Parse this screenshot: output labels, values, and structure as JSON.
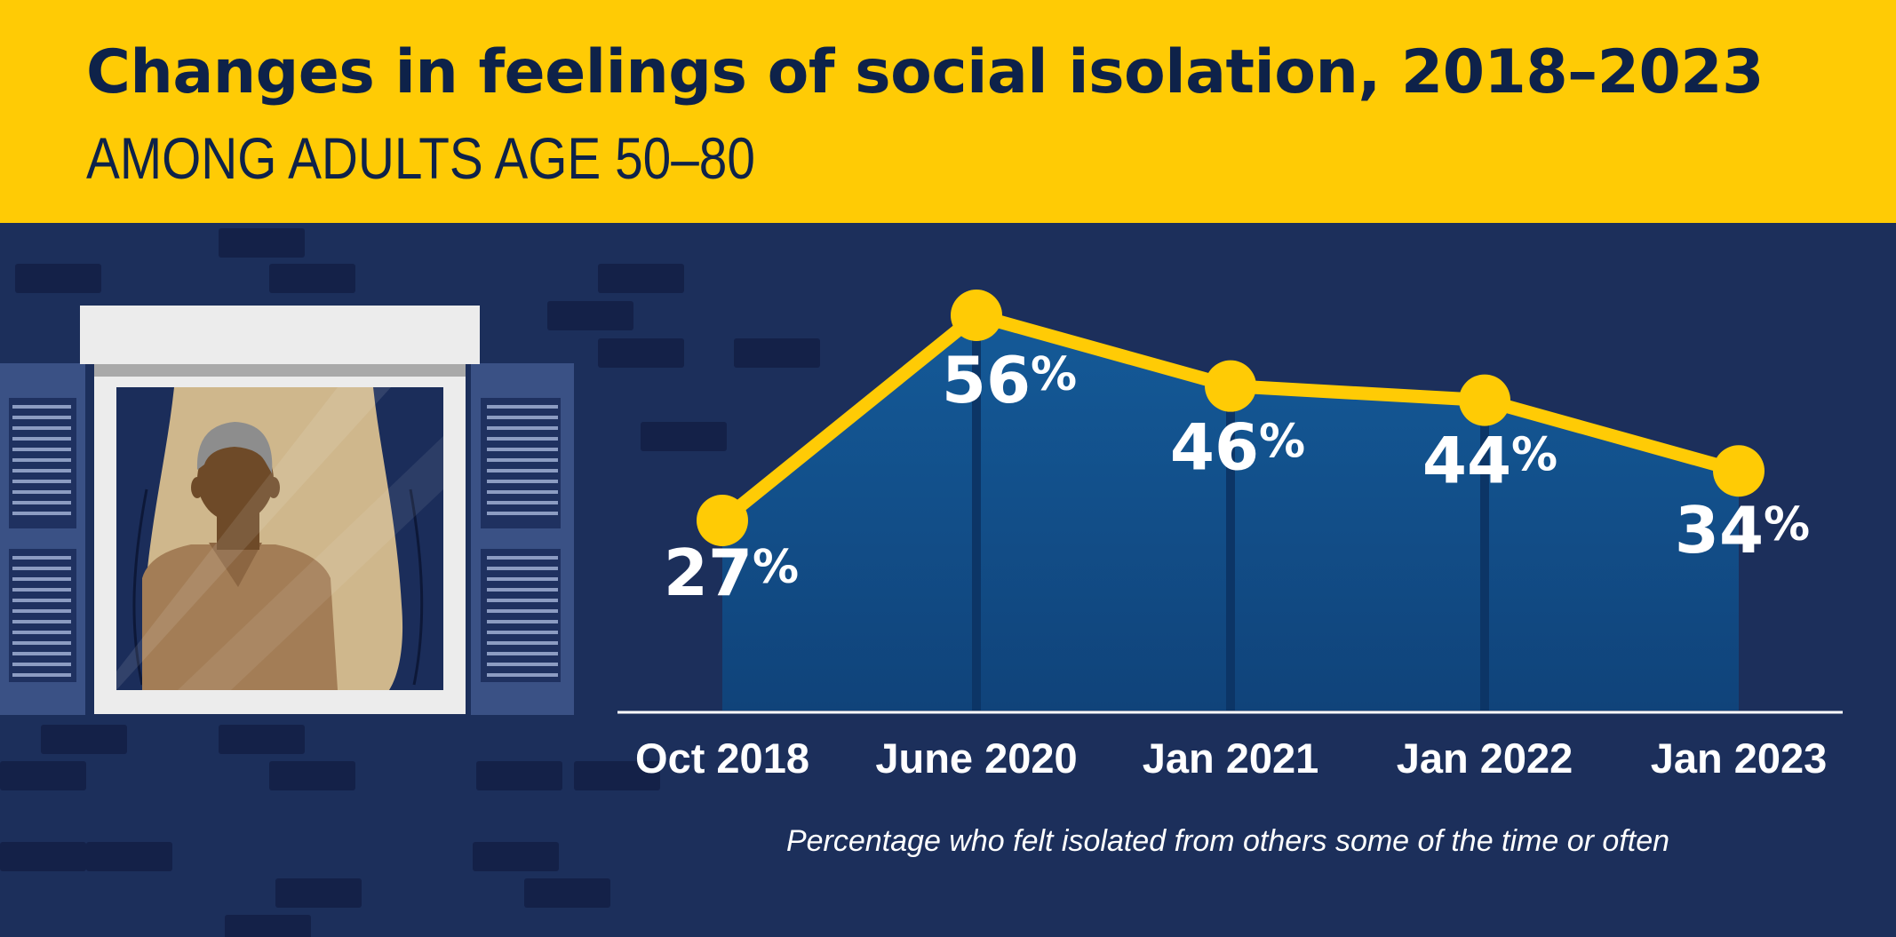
{
  "header": {
    "title": "Changes in feelings of social isolation, 2018–2023",
    "subtitle": "AMONG ADULTS AGE 50–80"
  },
  "caption": "Percentage who felt isolated from others some of the time or often",
  "colors": {
    "header_bg": "#ffcb05",
    "title_text": "#0e2249",
    "background": "#1c2f5b",
    "line": "#ffcb05",
    "area": "#124b85",
    "text": "#ffffff"
  },
  "illustration": {
    "icon": "person-looking-out-window-icon"
  },
  "chart_data": {
    "type": "line",
    "categories": [
      "Oct 2018",
      "June 2020",
      "Jan 2021",
      "Jan 2022",
      "Jan 2023"
    ],
    "values": [
      27,
      56,
      46,
      44,
      34
    ],
    "data_labels": [
      "27%",
      "56%",
      "46%",
      "44%",
      "34%"
    ],
    "unit": "%",
    "grid": false
  }
}
